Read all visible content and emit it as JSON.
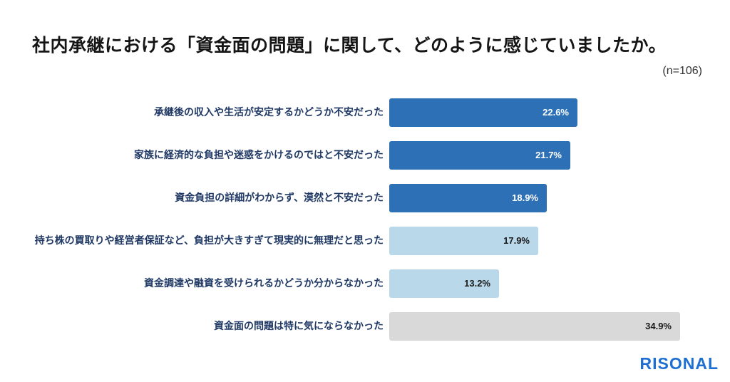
{
  "title": "社内承継における「資金面の問題」に関して、どのように感じていましたか。",
  "sample_size": "(n=106)",
  "logo_text": "RISONAL",
  "colors": {
    "background": "#ffffff",
    "title_text": "#151515",
    "label_text": "#1f3864",
    "dark_blue": "#2d70b5",
    "light_blue": "#b9d8ea",
    "gray": "#d9d9d9",
    "value_on_dark": "#ffffff",
    "value_on_light": "#1a1a1a",
    "logo_blue": "#1d6fd2"
  },
  "chart_data": {
    "type": "bar",
    "orientation": "horizontal",
    "title": "社内承継における「資金面の問題」に関して、どのように感じていましたか。",
    "sample_size_note": "(n=106)",
    "xlabel": "",
    "ylabel": "",
    "xlim": [
      0,
      40
    ],
    "grid": false,
    "legend": "none",
    "categories": [
      "承継後の収入や生活が安定するかどうか不安だった",
      "家族に経済的な負担や迷惑をかけるのではと不安だった",
      "資金負担の詳細がわからず、漠然と不安だった",
      "持ち株の買取りや経営者保証など、負担が大きすぎて現実的に無理だと思った",
      "資金調達や融資を受けられるかどうか分からなかった",
      "資金面の問題は特に気にならなかった"
    ],
    "values": [
      22.6,
      21.7,
      18.9,
      17.9,
      13.2,
      34.9
    ],
    "value_labels": [
      "22.6%",
      "21.7%",
      "18.9%",
      "17.9%",
      "13.2%",
      "34.9%"
    ],
    "bar_color_keys": [
      "dark_blue",
      "dark_blue",
      "dark_blue",
      "light_blue",
      "light_blue",
      "gray"
    ],
    "value_label_color_keys": [
      "value_on_dark",
      "value_on_dark",
      "value_on_dark",
      "value_on_light",
      "value_on_light",
      "value_on_light"
    ]
  }
}
